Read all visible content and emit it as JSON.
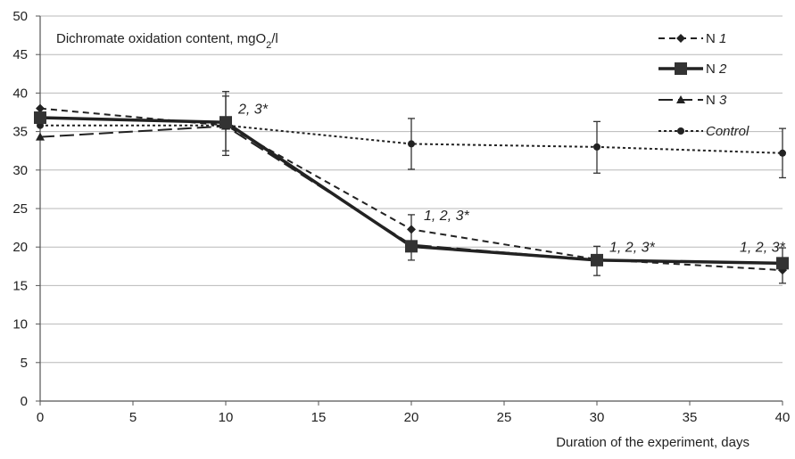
{
  "chart_data": {
    "type": "line",
    "title": "Dichromate oxidation content, mgO₂/l",
    "title_main": "Dichromate oxidation content, mgO",
    "title_sub": "2",
    "title_tail": "/l",
    "xlabel": "Duration of the experiment, days",
    "ylabel": "",
    "xlim": [
      0,
      40
    ],
    "ylim": [
      0,
      50
    ],
    "x_ticks": [
      0,
      5,
      10,
      15,
      20,
      25,
      30,
      35,
      40
    ],
    "y_ticks": [
      0,
      5,
      10,
      15,
      20,
      25,
      30,
      35,
      40,
      45,
      50
    ],
    "grid": "horizontal",
    "legend_position": "top-right",
    "x": [
      0,
      10,
      20,
      30,
      40
    ],
    "series": [
      {
        "name": "N",
        "name_italic": "1",
        "values": [
          38.0,
          35.8,
          22.3,
          18.4,
          17.0
        ],
        "color": "#222222",
        "dash": "7 5",
        "marker": "diamond",
        "width": 2
      },
      {
        "name": "N",
        "name_italic": "2",
        "values": [
          36.8,
          36.2,
          20.1,
          18.3,
          17.9
        ],
        "color": "#222222",
        "dash": "",
        "marker": "square",
        "width": 3.5
      },
      {
        "name": "N",
        "name_italic": "3",
        "values": [
          34.3,
          35.7,
          20.3,
          18.3,
          17.9
        ],
        "color": "#222222",
        "dash": "16 6",
        "marker": "triangle",
        "width": 2
      },
      {
        "name": "",
        "name_italic": "Control",
        "values": [
          35.8,
          35.8,
          33.4,
          33.0,
          32.2
        ],
        "color": "#222222",
        "dash": "3 3",
        "marker": "circle",
        "width": 2
      }
    ],
    "error_bars": [
      {
        "x": 10,
        "low": 31.9,
        "high": 40.2
      },
      {
        "x": 10,
        "low": 32.5,
        "high": 39.6
      },
      {
        "x": 20,
        "low": 18.3,
        "high": 24.2
      },
      {
        "x": 20,
        "low": 30.1,
        "high": 36.7
      },
      {
        "x": 30,
        "low": 16.3,
        "high": 20.1
      },
      {
        "x": 30,
        "low": 29.6,
        "high": 36.3
      },
      {
        "x": 40,
        "low": 15.3,
        "high": 19.9
      },
      {
        "x": 40,
        "low": 29.0,
        "high": 35.4
      }
    ],
    "annotations": [
      {
        "text": "2, 3*",
        "x": 10,
        "y": 37.3
      },
      {
        "text": "1, 2, 3*",
        "x": 20,
        "y": 23.5
      },
      {
        "text": "1, 2, 3*",
        "x": 30,
        "y": 19.4
      },
      {
        "text": "1, 2, 3*",
        "x": 40,
        "y": 19.4
      }
    ]
  }
}
